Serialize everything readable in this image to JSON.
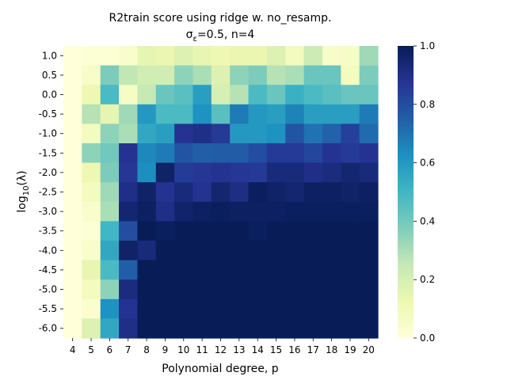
{
  "chart_data": {
    "type": "heatmap",
    "title": "R2train score using ridge w. no_resamp.",
    "subtitle": "σε=0.5,  n=4",
    "subtitle_parts": {
      "sigma": "σ",
      "sub": "ε",
      "rest": "=0.5,  n=4"
    },
    "xlabel": "Polynomial degree, p",
    "ylabel_parts": {
      "prefix": "log",
      "sub": "10",
      "suffix": "(λ)"
    },
    "x": [
      "4",
      "5",
      "6",
      "7",
      "8",
      "9",
      "10",
      "11",
      "12",
      "13",
      "14",
      "15",
      "16",
      "17",
      "18",
      "19",
      "20"
    ],
    "y": [
      "1.0",
      "0.5",
      "0.0",
      "-0.5",
      "-1.0",
      "-1.5",
      "-2.0",
      "-2.5",
      "-3.0",
      "-3.5",
      "-4.0",
      "-4.5",
      "-5.0",
      "-5.5",
      "-6.0"
    ],
    "colorbar": {
      "min": 0.0,
      "max": 1.0,
      "ticks": [
        "0.0",
        "0.2",
        "0.4",
        "0.6",
        "0.8",
        "1.0"
      ],
      "colormap": "YlGnBu"
    },
    "values": [
      [
        0.0,
        0.02,
        0.02,
        0.04,
        0.15,
        0.13,
        0.18,
        0.14,
        0.12,
        0.13,
        0.13,
        0.18,
        0.08,
        0.23,
        0.05,
        0.06,
        0.32
      ],
      [
        0.0,
        0.05,
        0.38,
        0.26,
        0.22,
        0.22,
        0.35,
        0.3,
        0.18,
        0.35,
        0.38,
        0.28,
        0.3,
        0.42,
        0.42,
        0.08,
        0.38
      ],
      [
        0.0,
        0.12,
        0.48,
        0.06,
        0.25,
        0.42,
        0.45,
        0.58,
        0.2,
        0.28,
        0.48,
        0.42,
        0.52,
        0.48,
        0.45,
        0.42,
        0.42
      ],
      [
        0.0,
        0.28,
        0.15,
        0.32,
        0.6,
        0.48,
        0.48,
        0.62,
        0.45,
        0.68,
        0.6,
        0.58,
        0.66,
        0.58,
        0.58,
        0.58,
        0.68
      ],
      [
        0.0,
        0.08,
        0.35,
        0.3,
        0.55,
        0.58,
        0.88,
        0.9,
        0.86,
        0.6,
        0.6,
        0.62,
        0.78,
        0.7,
        0.74,
        0.84,
        0.72
      ],
      [
        0.0,
        0.35,
        0.4,
        0.88,
        0.65,
        0.68,
        0.78,
        0.75,
        0.76,
        0.76,
        0.8,
        0.86,
        0.86,
        0.82,
        0.88,
        0.86,
        0.88
      ],
      [
        0.0,
        0.12,
        0.38,
        0.87,
        0.63,
        0.97,
        0.85,
        0.87,
        0.88,
        0.87,
        0.86,
        0.93,
        0.93,
        0.9,
        0.92,
        0.95,
        0.93
      ],
      [
        0.0,
        0.08,
        0.32,
        0.9,
        0.97,
        0.88,
        0.93,
        0.88,
        0.95,
        0.91,
        0.99,
        0.97,
        0.95,
        0.98,
        0.98,
        0.97,
        0.98
      ],
      [
        0.0,
        0.04,
        0.3,
        0.95,
        0.98,
        0.9,
        0.96,
        0.98,
        0.99,
        0.98,
        0.98,
        0.98,
        0.99,
        0.99,
        0.99,
        0.99,
        0.99
      ],
      [
        0.0,
        0.02,
        0.5,
        0.8,
        1.0,
        0.99,
        1.0,
        1.0,
        1.0,
        1.0,
        0.99,
        1.0,
        1.0,
        1.0,
        1.0,
        1.0,
        1.0
      ],
      [
        0.0,
        0.04,
        0.55,
        0.97,
        0.93,
        1.0,
        1.0,
        1.0,
        1.0,
        1.0,
        1.0,
        1.0,
        1.0,
        1.0,
        1.0,
        1.0,
        1.0
      ],
      [
        0.0,
        0.14,
        0.48,
        0.75,
        1.0,
        1.0,
        1.0,
        1.0,
        1.0,
        1.0,
        1.0,
        1.0,
        1.0,
        1.0,
        1.0,
        1.0,
        1.0
      ],
      [
        0.0,
        0.08,
        0.35,
        0.92,
        1.0,
        1.0,
        1.0,
        1.0,
        1.0,
        1.0,
        1.0,
        1.0,
        1.0,
        1.0,
        1.0,
        1.0,
        1.0
      ],
      [
        0.0,
        0.03,
        0.62,
        0.88,
        1.0,
        1.0,
        1.0,
        1.0,
        1.0,
        1.0,
        1.0,
        1.0,
        1.0,
        1.0,
        1.0,
        1.0,
        1.0
      ],
      [
        0.0,
        0.18,
        0.55,
        0.9,
        1.0,
        1.0,
        1.0,
        1.0,
        1.0,
        1.0,
        1.0,
        1.0,
        1.0,
        1.0,
        1.0,
        1.0,
        1.0
      ]
    ]
  }
}
